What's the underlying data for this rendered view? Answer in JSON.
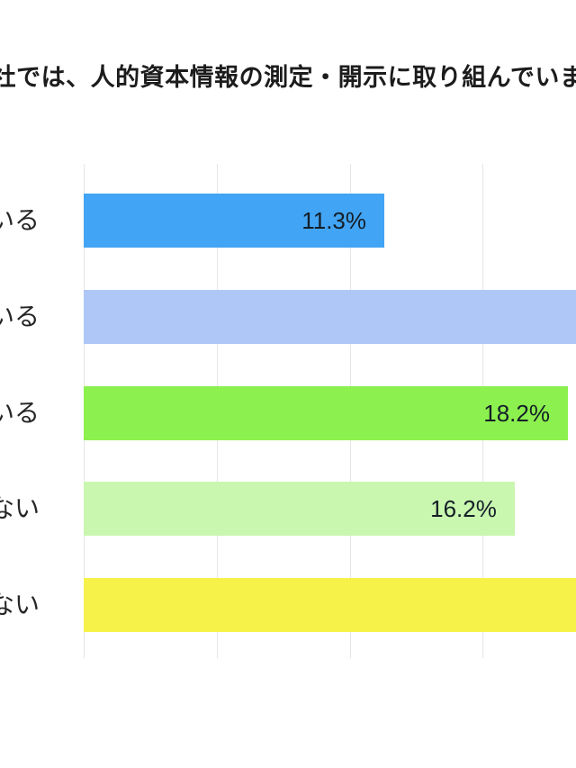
{
  "page": {
    "background": "#ffffff",
    "note": "image is cropped: title, category labels and two bars are cut off at the edges"
  },
  "colors": {
    "grid": "#e6e6e6",
    "title_text": "#1c1c1c",
    "value_text": "#141e28",
    "category_text": "#262626"
  },
  "chart_data": {
    "type": "bar",
    "orientation": "horizontal",
    "title": "社では、人的資本情報の測定・開示に取り組んでいま",
    "title_truncated": true,
    "categories": [
      "いる",
      "いる",
      "いる",
      "ない",
      "ない"
    ],
    "categories_truncated_left": true,
    "bars": [
      {
        "label": "いる",
        "value_pct": 11.3,
        "value_label": "11.3%",
        "color": "#42a4f4",
        "clipped_right": false
      },
      {
        "label": "いる",
        "value_pct": null,
        "value_label": "",
        "color": "#afc7f7",
        "clipped_right": true
      },
      {
        "label": "いる",
        "value_pct": 18.2,
        "value_label": "18.2%",
        "color": "#8cf04e",
        "clipped_right": false
      },
      {
        "label": "ない",
        "value_pct": 16.2,
        "value_label": "16.2%",
        "color": "#caf7af",
        "clipped_right": false
      },
      {
        "label": "ない",
        "value_pct": null,
        "value_label": "",
        "color": "#f6f24a",
        "clipped_right": true
      }
    ],
    "axis": {
      "unit": "%",
      "x_start_pct": 0,
      "gridline_step_pct": 5,
      "visible_gridlines_pct": [
        0,
        5,
        10,
        15
      ],
      "tick_labels_visible": false,
      "grid_on": true
    },
    "legend": null,
    "xlabel": "",
    "ylabel": ""
  }
}
